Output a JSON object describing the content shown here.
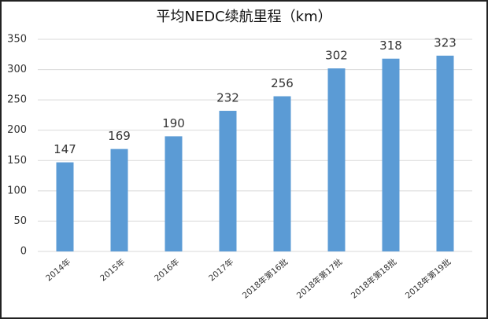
{
  "chart_data": {
    "type": "bar",
    "title": "平均NEDC续航里程（km）",
    "categories": [
      "2014年",
      "2015年",
      "2016年",
      "2017年",
      "2018年第16批",
      "2018年第17批",
      "2018年第18批",
      "2018年第19批"
    ],
    "values": [
      147,
      169,
      190,
      232,
      256,
      302,
      318,
      323
    ],
    "color": "#5b9bd5",
    "ylim": [
      0,
      350
    ],
    "yticks": [
      0,
      50,
      100,
      150,
      200,
      250,
      300,
      350
    ],
    "grid": true
  }
}
